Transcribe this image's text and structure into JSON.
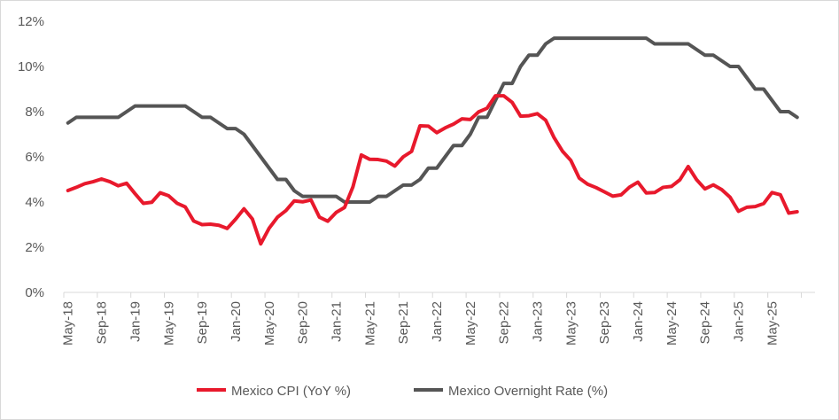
{
  "chart_data": {
    "type": "line",
    "title": "",
    "xlabel": "",
    "ylabel": "",
    "x_tick_labels": [
      "May-18",
      "Sep-18",
      "Jan-19",
      "May-19",
      "Sep-19",
      "Jan-20",
      "May-20",
      "Sep-20",
      "Jan-21",
      "May-21",
      "Sep-21",
      "Jan-22",
      "May-22",
      "Sep-22",
      "Jan-23",
      "May-23",
      "Sep-23",
      "Jan-24",
      "May-24",
      "Sep-24",
      "Jan-25",
      "May-25"
    ],
    "y_tick_labels": [
      "0%",
      "2%",
      "4%",
      "6%",
      "8%",
      "10%",
      "12%"
    ],
    "ylim": [
      0,
      12
    ],
    "x_start": "2018-05",
    "grid": false,
    "legend_position": "bottom",
    "series": [
      {
        "name": "Mexico CPI (YoY %)",
        "color": "#e8192c",
        "values": [
          4.51,
          4.65,
          4.81,
          4.9,
          5.02,
          4.9,
          4.72,
          4.83,
          4.37,
          3.94,
          3.99,
          4.41,
          4.28,
          3.95,
          3.78,
          3.16,
          3.0,
          3.02,
          2.97,
          2.83,
          3.24,
          3.7,
          3.25,
          2.15,
          2.84,
          3.33,
          3.62,
          4.05,
          4.01,
          4.09,
          3.33,
          3.15,
          3.54,
          3.76,
          4.67,
          6.08,
          5.89,
          5.88,
          5.81,
          5.59,
          6.0,
          6.24,
          7.37,
          7.36,
          7.07,
          7.28,
          7.45,
          7.68,
          7.65,
          7.99,
          8.15,
          8.7,
          8.7,
          8.41,
          7.8,
          7.82,
          7.91,
          7.62,
          6.85,
          6.25,
          5.84,
          5.06,
          4.79,
          4.64,
          4.45,
          4.26,
          4.32,
          4.66,
          4.88,
          4.4,
          4.42,
          4.65,
          4.69,
          4.98,
          5.57,
          4.99,
          4.58,
          4.76,
          4.55,
          4.21,
          3.59,
          3.77,
          3.8,
          3.93,
          4.42,
          4.32,
          3.51,
          3.57
        ]
      },
      {
        "name": "Mexico Overnight Rate (%)",
        "color": "#555555",
        "values": [
          7.5,
          7.75,
          7.75,
          7.75,
          7.75,
          7.75,
          7.75,
          8.0,
          8.25,
          8.25,
          8.25,
          8.25,
          8.25,
          8.25,
          8.25,
          8.0,
          7.75,
          7.75,
          7.5,
          7.25,
          7.25,
          7.0,
          6.5,
          6.0,
          5.5,
          5.0,
          5.0,
          4.5,
          4.25,
          4.25,
          4.25,
          4.25,
          4.25,
          4.0,
          4.0,
          4.0,
          4.0,
          4.25,
          4.25,
          4.5,
          4.75,
          4.75,
          5.0,
          5.5,
          5.5,
          6.0,
          6.5,
          6.5,
          7.0,
          7.75,
          7.75,
          8.5,
          9.25,
          9.25,
          10.0,
          10.5,
          10.5,
          11.0,
          11.25,
          11.25,
          11.25,
          11.25,
          11.25,
          11.25,
          11.25,
          11.25,
          11.25,
          11.25,
          11.25,
          11.25,
          11.0,
          11.0,
          11.0,
          11.0,
          11.0,
          10.75,
          10.5,
          10.5,
          10.25,
          10.0,
          10.0,
          9.5,
          9.0,
          9.0,
          8.5,
          8.0,
          8.0,
          7.75
        ]
      }
    ]
  }
}
